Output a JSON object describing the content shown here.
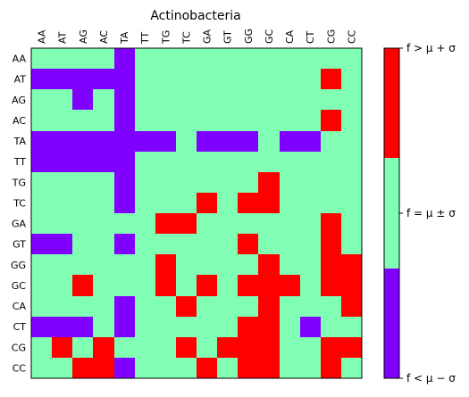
{
  "chart_data": {
    "type": "heatmap",
    "title": "Actinobacteria",
    "x_labels": [
      "AA",
      "AT",
      "AG",
      "AC",
      "TA",
      "TT",
      "TG",
      "TC",
      "GA",
      "GT",
      "GG",
      "GC",
      "CA",
      "CT",
      "CG",
      "CC"
    ],
    "y_labels": [
      "AA",
      "AT",
      "AG",
      "AC",
      "TA",
      "TT",
      "TG",
      "TC",
      "GA",
      "GT",
      "GG",
      "GC",
      "CA",
      "CT",
      "CG",
      "CC"
    ],
    "levels": [
      {
        "code": -1,
        "label": "f < μ − σ",
        "color": "#8000ff"
      },
      {
        "code": 0,
        "label": "f = μ ± σ",
        "color": "#80ffb4"
      },
      {
        "code": 1,
        "label": "f > μ + σ",
        "color": "#ff0000"
      }
    ],
    "colorbar_ticks": [
      "f < μ − σ",
      "f = μ ± σ",
      "f > μ + σ"
    ],
    "matrix": [
      [
        0,
        0,
        0,
        0,
        -1,
        0,
        0,
        0,
        0,
        0,
        0,
        0,
        0,
        0,
        0,
        0
      ],
      [
        -1,
        -1,
        -1,
        -1,
        -1,
        0,
        0,
        0,
        0,
        0,
        0,
        0,
        0,
        0,
        1,
        0
      ],
      [
        0,
        0,
        -1,
        0,
        -1,
        0,
        0,
        0,
        0,
        0,
        0,
        0,
        0,
        0,
        0,
        0
      ],
      [
        0,
        0,
        0,
        0,
        -1,
        0,
        0,
        0,
        0,
        0,
        0,
        0,
        0,
        0,
        1,
        0
      ],
      [
        -1,
        -1,
        -1,
        -1,
        -1,
        -1,
        -1,
        0,
        -1,
        -1,
        -1,
        0,
        -1,
        -1,
        0,
        0
      ],
      [
        -1,
        -1,
        -1,
        -1,
        -1,
        0,
        0,
        0,
        0,
        0,
        0,
        0,
        0,
        0,
        0,
        0
      ],
      [
        0,
        0,
        0,
        0,
        -1,
        0,
        0,
        0,
        0,
        0,
        0,
        1,
        0,
        0,
        0,
        0
      ],
      [
        0,
        0,
        0,
        0,
        -1,
        0,
        0,
        0,
        1,
        0,
        1,
        1,
        0,
        0,
        0,
        0
      ],
      [
        0,
        0,
        0,
        0,
        0,
        0,
        1,
        1,
        0,
        0,
        0,
        0,
        0,
        0,
        1,
        0
      ],
      [
        -1,
        -1,
        0,
        0,
        -1,
        0,
        0,
        0,
        0,
        0,
        1,
        0,
        0,
        0,
        1,
        0
      ],
      [
        0,
        0,
        0,
        0,
        0,
        0,
        1,
        0,
        0,
        0,
        0,
        1,
        0,
        0,
        1,
        1
      ],
      [
        0,
        0,
        1,
        0,
        0,
        0,
        1,
        0,
        1,
        0,
        1,
        1,
        1,
        0,
        1,
        1
      ],
      [
        0,
        0,
        0,
        0,
        -1,
        0,
        0,
        1,
        0,
        0,
        0,
        1,
        0,
        0,
        0,
        1
      ],
      [
        -1,
        -1,
        -1,
        0,
        -1,
        0,
        0,
        0,
        0,
        0,
        1,
        1,
        0,
        -1,
        0,
        0
      ],
      [
        0,
        1,
        0,
        1,
        0,
        0,
        0,
        1,
        0,
        1,
        1,
        1,
        0,
        0,
        1,
        1
      ],
      [
        0,
        0,
        1,
        1,
        -1,
        0,
        0,
        0,
        1,
        0,
        1,
        1,
        0,
        0,
        1,
        0
      ]
    ]
  }
}
